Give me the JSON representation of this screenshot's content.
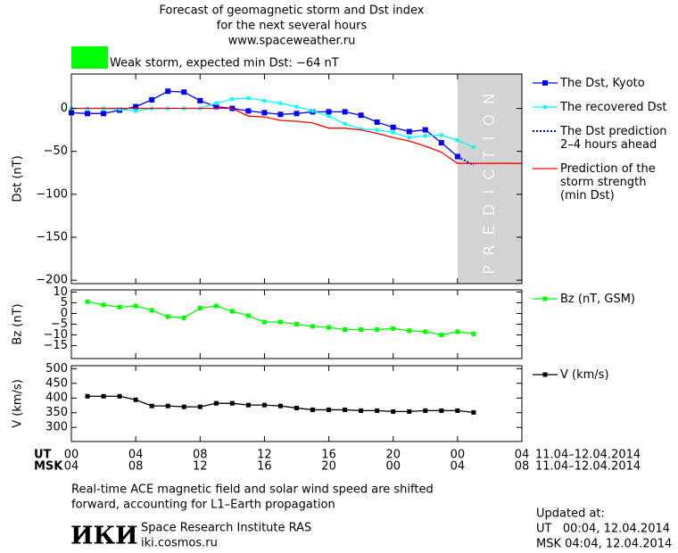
{
  "header": {
    "title_lines": [
      "Forecast of geomagnetic storm and Dst index",
      "for the next several hours",
      "www.spaceweather.ru"
    ],
    "storm_level": {
      "text": "Weak storm, expected min Dst: −64 nT",
      "color": "#00ff00"
    }
  },
  "chart_data": [
    {
      "type": "line",
      "ylabel": "Dst (nT)",
      "legend": "right",
      "xlim": [
        0,
        28
      ],
      "xticks": [
        0,
        4,
        8,
        12,
        16,
        20,
        24,
        28
      ],
      "ylim": [
        -204,
        40
      ],
      "yticks": [
        0,
        {
          "value": -50,
          "label": "−50"
        },
        {
          "value": -100,
          "label": "−100"
        },
        {
          "value": -150,
          "label": "−150"
        },
        {
          "value": -200,
          "label": "−200"
        }
      ],
      "prediction_band": {
        "label": "PREDICTION",
        "x": [
          24,
          28
        ],
        "color": "#d3d3d3"
      },
      "series": [
        {
          "name": "The Dst, Kyoto",
          "color": "#0000ff",
          "marker": "square",
          "marker_size": 6,
          "x": [
            0,
            1,
            2,
            3,
            4,
            5,
            6,
            7,
            8,
            9,
            10,
            11,
            12,
            13,
            14,
            15,
            16,
            17,
            18,
            19,
            20,
            21,
            22,
            23,
            24
          ],
          "values": [
            -5,
            -6,
            -6,
            -2,
            2,
            10,
            20,
            19,
            9,
            2,
            0,
            -3,
            -5,
            -7,
            -6,
            -4,
            -4,
            -4,
            -8,
            -16,
            -22,
            -27,
            -25,
            -40,
            -56
          ]
        },
        {
          "name": "The recovered Dst",
          "color": "#00ffff",
          "marker": "square",
          "marker_size": 4,
          "x": [
            0,
            1,
            2,
            3,
            4,
            5,
            6,
            7,
            8,
            9,
            10,
            11,
            12,
            13,
            14,
            15,
            16,
            17,
            18,
            19,
            20,
            21,
            22,
            23,
            24,
            25
          ],
          "values": [
            0,
            0,
            0,
            -1,
            -3,
            0,
            0,
            0,
            0,
            6,
            11,
            12,
            9,
            6,
            2,
            -3,
            -9,
            -18,
            -24,
            -25,
            -28,
            -34,
            -32,
            -31,
            -37,
            -45
          ]
        },
        {
          "name": "The Dst prediction\n2–4 hours ahead",
          "color": "#0000ff",
          "line_style": "dotted",
          "x": [
            24,
            25
          ],
          "values": [
            -56,
            -66
          ]
        },
        {
          "name": "Prediction of the\nstorm strength\n(min Dst)",
          "color": "#ff0000",
          "x": [
            0,
            1,
            2,
            3,
            4,
            5,
            6,
            7,
            8,
            9,
            10,
            11,
            12,
            13,
            14,
            15,
            16,
            17,
            18,
            19,
            20,
            21,
            22,
            23,
            24,
            25,
            26,
            27,
            28
          ],
          "values": [
            0,
            0,
            0,
            0,
            0,
            0,
            0,
            0,
            0,
            0,
            0,
            -9,
            -10,
            -14,
            -15,
            -17,
            -23,
            -23,
            -25,
            -29,
            -34,
            -38,
            -44,
            -51,
            -64,
            -64,
            -64,
            -64,
            -64
          ]
        }
      ]
    },
    {
      "type": "line",
      "ylabel": "Bz (nT)",
      "legend": "right",
      "xlim": [
        0,
        28
      ],
      "xticks": [
        0,
        4,
        8,
        12,
        16,
        20,
        24,
        28
      ],
      "ylim": [
        -21,
        11
      ],
      "yticks": [
        10,
        5,
        0,
        {
          "value": -5,
          "label": "−5"
        },
        {
          "value": -10,
          "label": "−10"
        },
        {
          "value": -15,
          "label": "−15"
        }
      ],
      "series": [
        {
          "name": "Bz (nT, GSM)",
          "color": "#00ff00",
          "marker": "square",
          "marker_size": 5,
          "x": [
            1,
            2,
            3,
            4,
            5,
            6,
            7,
            8,
            9,
            10,
            11,
            12,
            13,
            14,
            15,
            16,
            17,
            18,
            19,
            20,
            21,
            22,
            23,
            24,
            25
          ],
          "values": [
            5.5,
            4,
            3,
            3.5,
            1.5,
            -1.5,
            -2,
            2.5,
            3.5,
            1,
            -1,
            -4,
            -4,
            -5,
            -6,
            -6.5,
            -7.5,
            -7.5,
            -7.5,
            -7,
            -8,
            -8.5,
            -10,
            -8.5,
            -9.5
          ]
        }
      ]
    },
    {
      "type": "line",
      "ylabel": "V (km/s)",
      "legend": "right",
      "xlim": [
        0,
        28
      ],
      "xticks": [
        0,
        4,
        8,
        12,
        16,
        20,
        24,
        28
      ],
      "ylim": [
        252,
        510
      ],
      "yticks": [
        500,
        450,
        400,
        350,
        300
      ],
      "series": [
        {
          "name": "V (km/s)",
          "color": "#000000",
          "marker": "square",
          "marker_size": 5,
          "x": [
            1,
            2,
            3,
            4,
            5,
            6,
            7,
            8,
            9,
            10,
            11,
            12,
            13,
            14,
            15,
            16,
            17,
            18,
            19,
            20,
            21,
            22,
            23,
            24,
            25
          ],
          "values": [
            406,
            406,
            406,
            394,
            373,
            373,
            370,
            370,
            382,
            382,
            376,
            376,
            373,
            366,
            360,
            360,
            360,
            357,
            357,
            354,
            354,
            357,
            357,
            357,
            351
          ]
        }
      ]
    }
  ],
  "time_axis": {
    "rows": [
      {
        "label": "UT",
        "date": "11.04–12.04.2014",
        "ticks": [
          {
            "value": 0,
            "label": "00"
          },
          {
            "value": 4,
            "label": "04"
          },
          {
            "value": 8,
            "label": "08"
          },
          {
            "value": 12,
            "label": "12"
          },
          {
            "value": 16,
            "label": "16"
          },
          {
            "value": 20,
            "label": "20"
          },
          {
            "value": 24,
            "label": "00"
          },
          {
            "value": 28,
            "label": "04"
          }
        ]
      },
      {
        "label": "MSK",
        "date": "11.04–12.04.2014",
        "ticks": [
          {
            "value": 0,
            "label": "04"
          },
          {
            "value": 4,
            "label": "08"
          },
          {
            "value": 8,
            "label": "12"
          },
          {
            "value": 12,
            "label": "16"
          },
          {
            "value": 16,
            "label": "20"
          },
          {
            "value": 20,
            "label": "00"
          },
          {
            "value": 24,
            "label": "04"
          },
          {
            "value": 28,
            "label": "08"
          }
        ]
      }
    ]
  },
  "footer": {
    "note_lines": [
      "Real-time ACE magnetic field and solar wind speed are shifted",
      "forward, accounting for L1–Earth propagation"
    ],
    "logo": "ИКИ",
    "institute": "Space Research Institute RAS",
    "site": "iki.cosmos.ru",
    "updated": {
      "label": "Updated at:",
      "lines": [
        "UT   00:04, 12.04.2014",
        "MSK 04:04, 12.04.2014"
      ]
    }
  }
}
